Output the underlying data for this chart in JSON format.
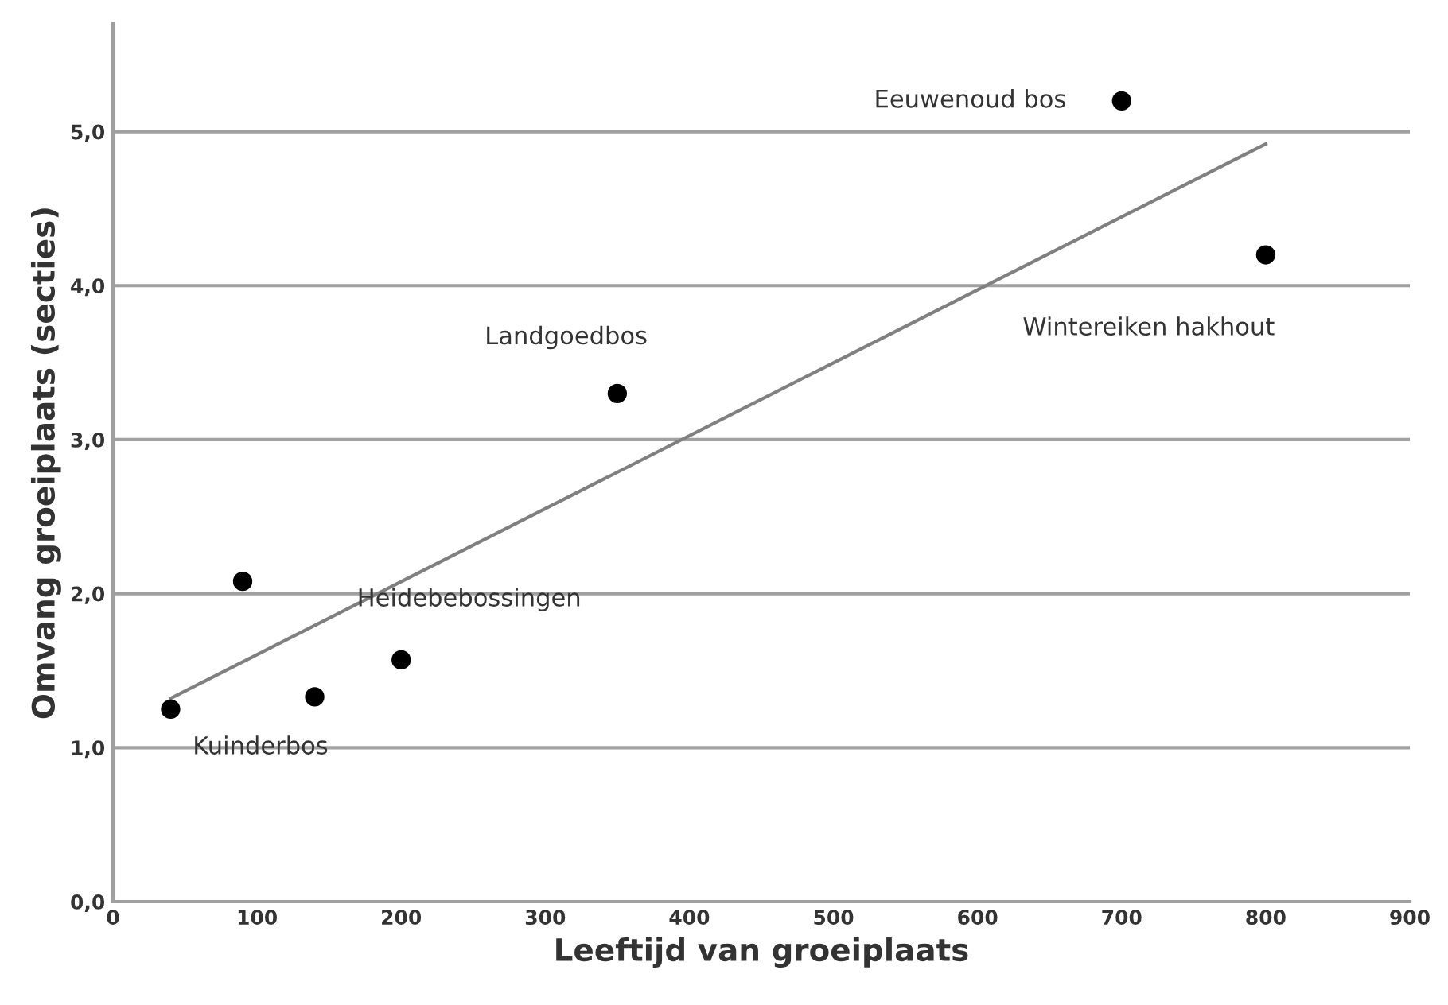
{
  "chart_data": {
    "type": "scatter",
    "xlabel": "Leeftijd van groeiplaats",
    "ylabel": "Omvang groeiplaats (secties)",
    "series": [
      {
        "color": "#000000",
        "marker": "circle",
        "x": [
          40,
          90,
          140,
          200,
          350,
          700,
          800
        ],
        "values": [
          1.25,
          2.08,
          1.33,
          1.57,
          3.3,
          5.2,
          4.2
        ]
      },
      {
        "type": "line",
        "color": "#808080",
        "marker": "none",
        "line_style": "solid",
        "x": [
          40,
          800
        ],
        "values": [
          1.32,
          4.92
        ]
      }
    ],
    "annotations": [
      {
        "text": "Kuinderbos",
        "x": 40,
        "y": 1.25
      },
      {
        "text": "Heidebebossingen",
        "x": 200,
        "y": 1.57
      },
      {
        "text": "Landgoedbos",
        "x": 350,
        "y": 3.3
      },
      {
        "text": "Eeuwenoud bos",
        "x": 700,
        "y": 5.2
      },
      {
        "text": "Wintereiken hakhout",
        "x": 800,
        "y": 4.2
      }
    ],
    "xlim": [
      0,
      900
    ],
    "xticks": [
      0,
      100,
      200,
      300,
      400,
      500,
      600,
      700,
      800,
      900
    ],
    "ylim": [
      0,
      5.7
    ],
    "yticks": [
      {
        "value": 0,
        "label": "0,0"
      },
      {
        "value": 1,
        "label": "1,0"
      },
      {
        "value": 2,
        "label": "2,0"
      },
      {
        "value": 3,
        "label": "3,0"
      },
      {
        "value": 4,
        "label": "4,0"
      },
      {
        "value": 5,
        "label": "5,0"
      }
    ],
    "grid": "y",
    "legend": false
  }
}
